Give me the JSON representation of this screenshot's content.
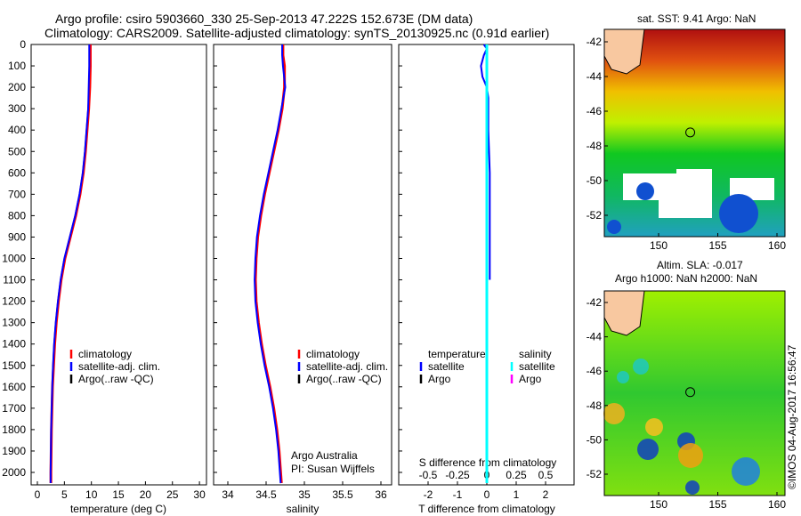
{
  "title_line1": "Argo profile: csiro 5903660_330 25-Sep-2013 47.222S 152.673E (DM data)",
  "title_line2": "Climatology: CARS2009. Satellite-adjusted climatology: synTS_20130925.nc (0.91d earlier)",
  "colors": {
    "climatology": "#ff0000",
    "satellite": "#0000ff",
    "argo": "#000000",
    "sal_satellite": "#00ffff",
    "sal_argo": "#ff00ff"
  },
  "chart_data": [
    {
      "type": "line",
      "name": "temperature",
      "xlabel": "temperature (deg C)",
      "xlim": [
        -2,
        31
      ],
      "ylim": [
        2060,
        0
      ],
      "xticks": [
        0,
        5,
        10,
        15,
        20,
        25,
        30
      ],
      "yticks": [
        0,
        100,
        200,
        300,
        400,
        500,
        600,
        700,
        800,
        900,
        1000,
        1100,
        1200,
        1300,
        1400,
        1500,
        1600,
        1700,
        1800,
        1900,
        2000
      ],
      "depth": [
        0,
        100,
        200,
        300,
        400,
        500,
        600,
        700,
        800,
        900,
        1000,
        1100,
        1200,
        1300,
        1400,
        1500,
        1600,
        1700,
        1800,
        1900,
        2000,
        2050
      ],
      "series": [
        {
          "name": "climatology",
          "values": [
            9.8,
            9.8,
            9.7,
            9.5,
            9.2,
            8.9,
            8.5,
            7.9,
            7.1,
            6.1,
            5.1,
            4.4,
            3.9,
            3.5,
            3.2,
            3.0,
            2.8,
            2.7,
            2.6,
            2.55,
            2.5,
            2.5
          ]
        },
        {
          "name": "satellite-adj. clim.",
          "values": [
            9.6,
            9.6,
            9.5,
            9.4,
            9.1,
            8.8,
            8.4,
            7.8,
            7.0,
            6.0,
            5.0,
            4.3,
            3.8,
            3.4,
            3.1,
            2.9,
            2.75,
            2.65,
            2.55,
            2.5,
            2.45,
            2.45
          ]
        }
      ],
      "legend": [
        "climatology",
        "satellite-adj. clim.",
        "Argo(..raw -QC)"
      ]
    },
    {
      "type": "line",
      "name": "salinity",
      "xlabel": "salinity",
      "xlim": [
        33.8,
        36.15
      ],
      "ylim": [
        2060,
        0
      ],
      "xticks": [
        "34",
        "34.5",
        "35",
        "35.5",
        "36"
      ],
      "depth": [
        0,
        50,
        100,
        200,
        300,
        400,
        500,
        600,
        700,
        800,
        900,
        1000,
        1100,
        1200,
        1300,
        1400,
        1500,
        1600,
        1700,
        1800,
        1900,
        2000,
        2050
      ],
      "series": [
        {
          "name": "climatology",
          "values": [
            34.72,
            34.72,
            34.74,
            34.74,
            34.71,
            34.66,
            34.6,
            34.54,
            34.48,
            34.43,
            34.39,
            34.37,
            34.36,
            34.37,
            34.4,
            34.44,
            34.49,
            34.55,
            34.6,
            34.64,
            34.67,
            34.69,
            34.7
          ]
        },
        {
          "name": "satellite-adj. clim.",
          "values": [
            34.71,
            34.71,
            34.72,
            34.75,
            34.7,
            34.65,
            34.59,
            34.53,
            34.47,
            34.42,
            34.38,
            34.36,
            34.35,
            34.36,
            34.39,
            34.43,
            34.48,
            34.54,
            34.59,
            34.63,
            34.66,
            34.68,
            34.69
          ]
        }
      ],
      "legend": [
        "climatology",
        "satellite-adj. clim.",
        "Argo(..raw -QC)"
      ],
      "annotation": [
        "Argo Australia",
        "PI: Susan Wijffels"
      ]
    },
    {
      "type": "line",
      "name": "difference",
      "xlabel": "T difference from climatology",
      "x2label": "S difference from climatology",
      "xlim": [
        -3,
        3
      ],
      "xticks": [
        "-2",
        "-1",
        "0",
        "1",
        "2"
      ],
      "x2ticks": [
        "-0.5",
        "-0.25",
        "0",
        "0.25",
        "0.5"
      ],
      "depth": [
        0,
        20,
        50,
        100,
        150,
        200,
        250,
        300,
        400,
        600,
        800,
        1000,
        1100
      ],
      "series": [
        {
          "name": "temperature satellite",
          "values": [
            -0.1,
            0.0,
            -0.1,
            -0.2,
            -0.15,
            0.0,
            0.05,
            0.05,
            0.05,
            0.1,
            0.1,
            0.1,
            0.1
          ]
        },
        {
          "name": "salinity satellite",
          "values": [
            0,
            0,
            0,
            0,
            0,
            0,
            0,
            0,
            0,
            0,
            0,
            0,
            0
          ]
        }
      ],
      "legend_temperature": "temperature",
      "legend_salinity": "salinity",
      "legend_items": [
        "satellite",
        "Argo"
      ]
    },
    {
      "type": "heatmap",
      "name": "sst-map",
      "title": "sat. SST: 9.41  Argo: NaN",
      "xticks": [
        "150",
        "155",
        "160"
      ],
      "yticks": [
        "-42",
        "-44",
        "-46",
        "-48",
        "-50",
        "-52"
      ],
      "argo_lon": 152.673,
      "argo_lat": -47.222
    },
    {
      "type": "heatmap",
      "name": "sla-map",
      "title1": "Altim. SLA: -0.017",
      "title2": "Argo h1000: NaN h2000: NaN",
      "xticks": [
        "150",
        "155",
        "160"
      ],
      "yticks": [
        "-42",
        "-44",
        "-46",
        "-48",
        "-50",
        "-52"
      ],
      "argo_lon": 152.673,
      "argo_lat": -47.222
    }
  ],
  "watermark": "©IMOS 04-Aug-2017 16:56:47"
}
